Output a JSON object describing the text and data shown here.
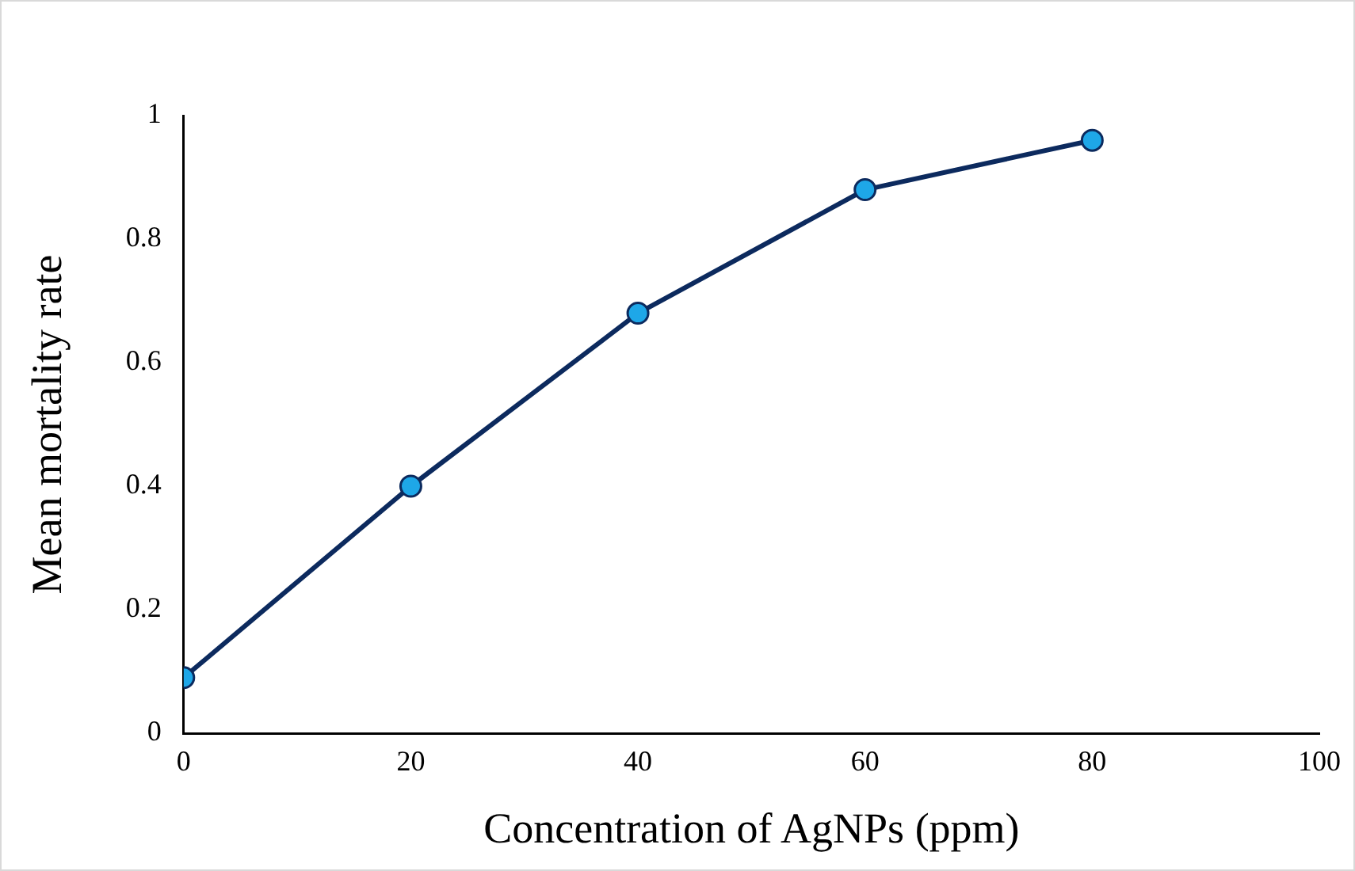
{
  "chart_data": {
    "type": "line",
    "xlabel": "Concentration of AgNPs (ppm)",
    "ylabel": "Mean mortality rate",
    "x": [
      0,
      20,
      40,
      60,
      80
    ],
    "series": [
      {
        "color": "#0c2a5e",
        "values": [
          0.09,
          0.4,
          0.68,
          0.88,
          0.96
        ]
      }
    ],
    "xlim": [
      0,
      100
    ],
    "xticks": [
      0,
      20,
      40,
      60,
      80,
      100
    ],
    "ylim": [
      0,
      1
    ],
    "yticks": [
      0,
      0.2,
      0.4,
      0.6,
      0.8,
      1
    ],
    "grid": false,
    "legend": false,
    "marker": "circle",
    "line_style": "solid"
  }
}
